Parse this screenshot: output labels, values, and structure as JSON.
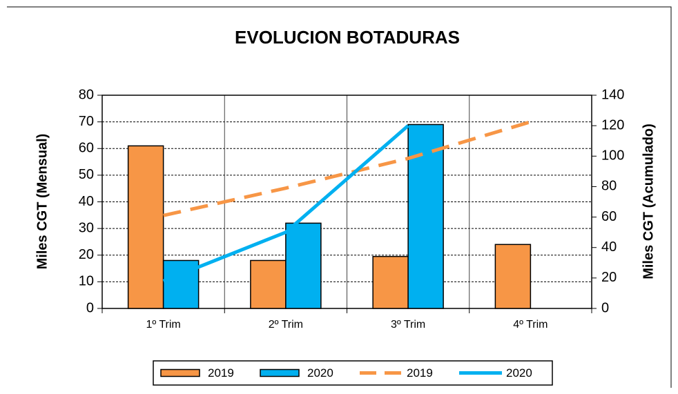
{
  "chart_data": {
    "type": "bar",
    "title": "EVOLUCION BOTADURAS",
    "y_label": "Miles CGT (Mensual)",
    "y2_label": "Miles CGT (Acumulado)",
    "categories": [
      "1º Trim",
      "2º Trim",
      "3º Trim",
      "4º Trim"
    ],
    "series": [
      {
        "name": "2019",
        "type": "bar",
        "color": "#f79646",
        "values": [
          61,
          18,
          19.5,
          24
        ]
      },
      {
        "name": "2020",
        "type": "bar",
        "color": "#00b0f0",
        "values": [
          18,
          32,
          69,
          null
        ]
      },
      {
        "name": "2019",
        "type": "line",
        "dashed": true,
        "axis": "y2",
        "color": "#f79646",
        "values": [
          61,
          79,
          98.5,
          122.5
        ]
      },
      {
        "name": "2020",
        "type": "line",
        "axis": "y2",
        "color": "#00b0f0",
        "values": [
          18,
          50,
          120,
          null
        ]
      }
    ],
    "ylim": [
      0,
      80
    ],
    "yticks": [
      0,
      10,
      20,
      30,
      40,
      50,
      60,
      70,
      80
    ],
    "y2lim": [
      0,
      140
    ],
    "y2ticks": [
      0,
      20,
      40,
      60,
      80,
      100,
      120,
      140
    ],
    "grid": true,
    "legend": "bottom"
  }
}
